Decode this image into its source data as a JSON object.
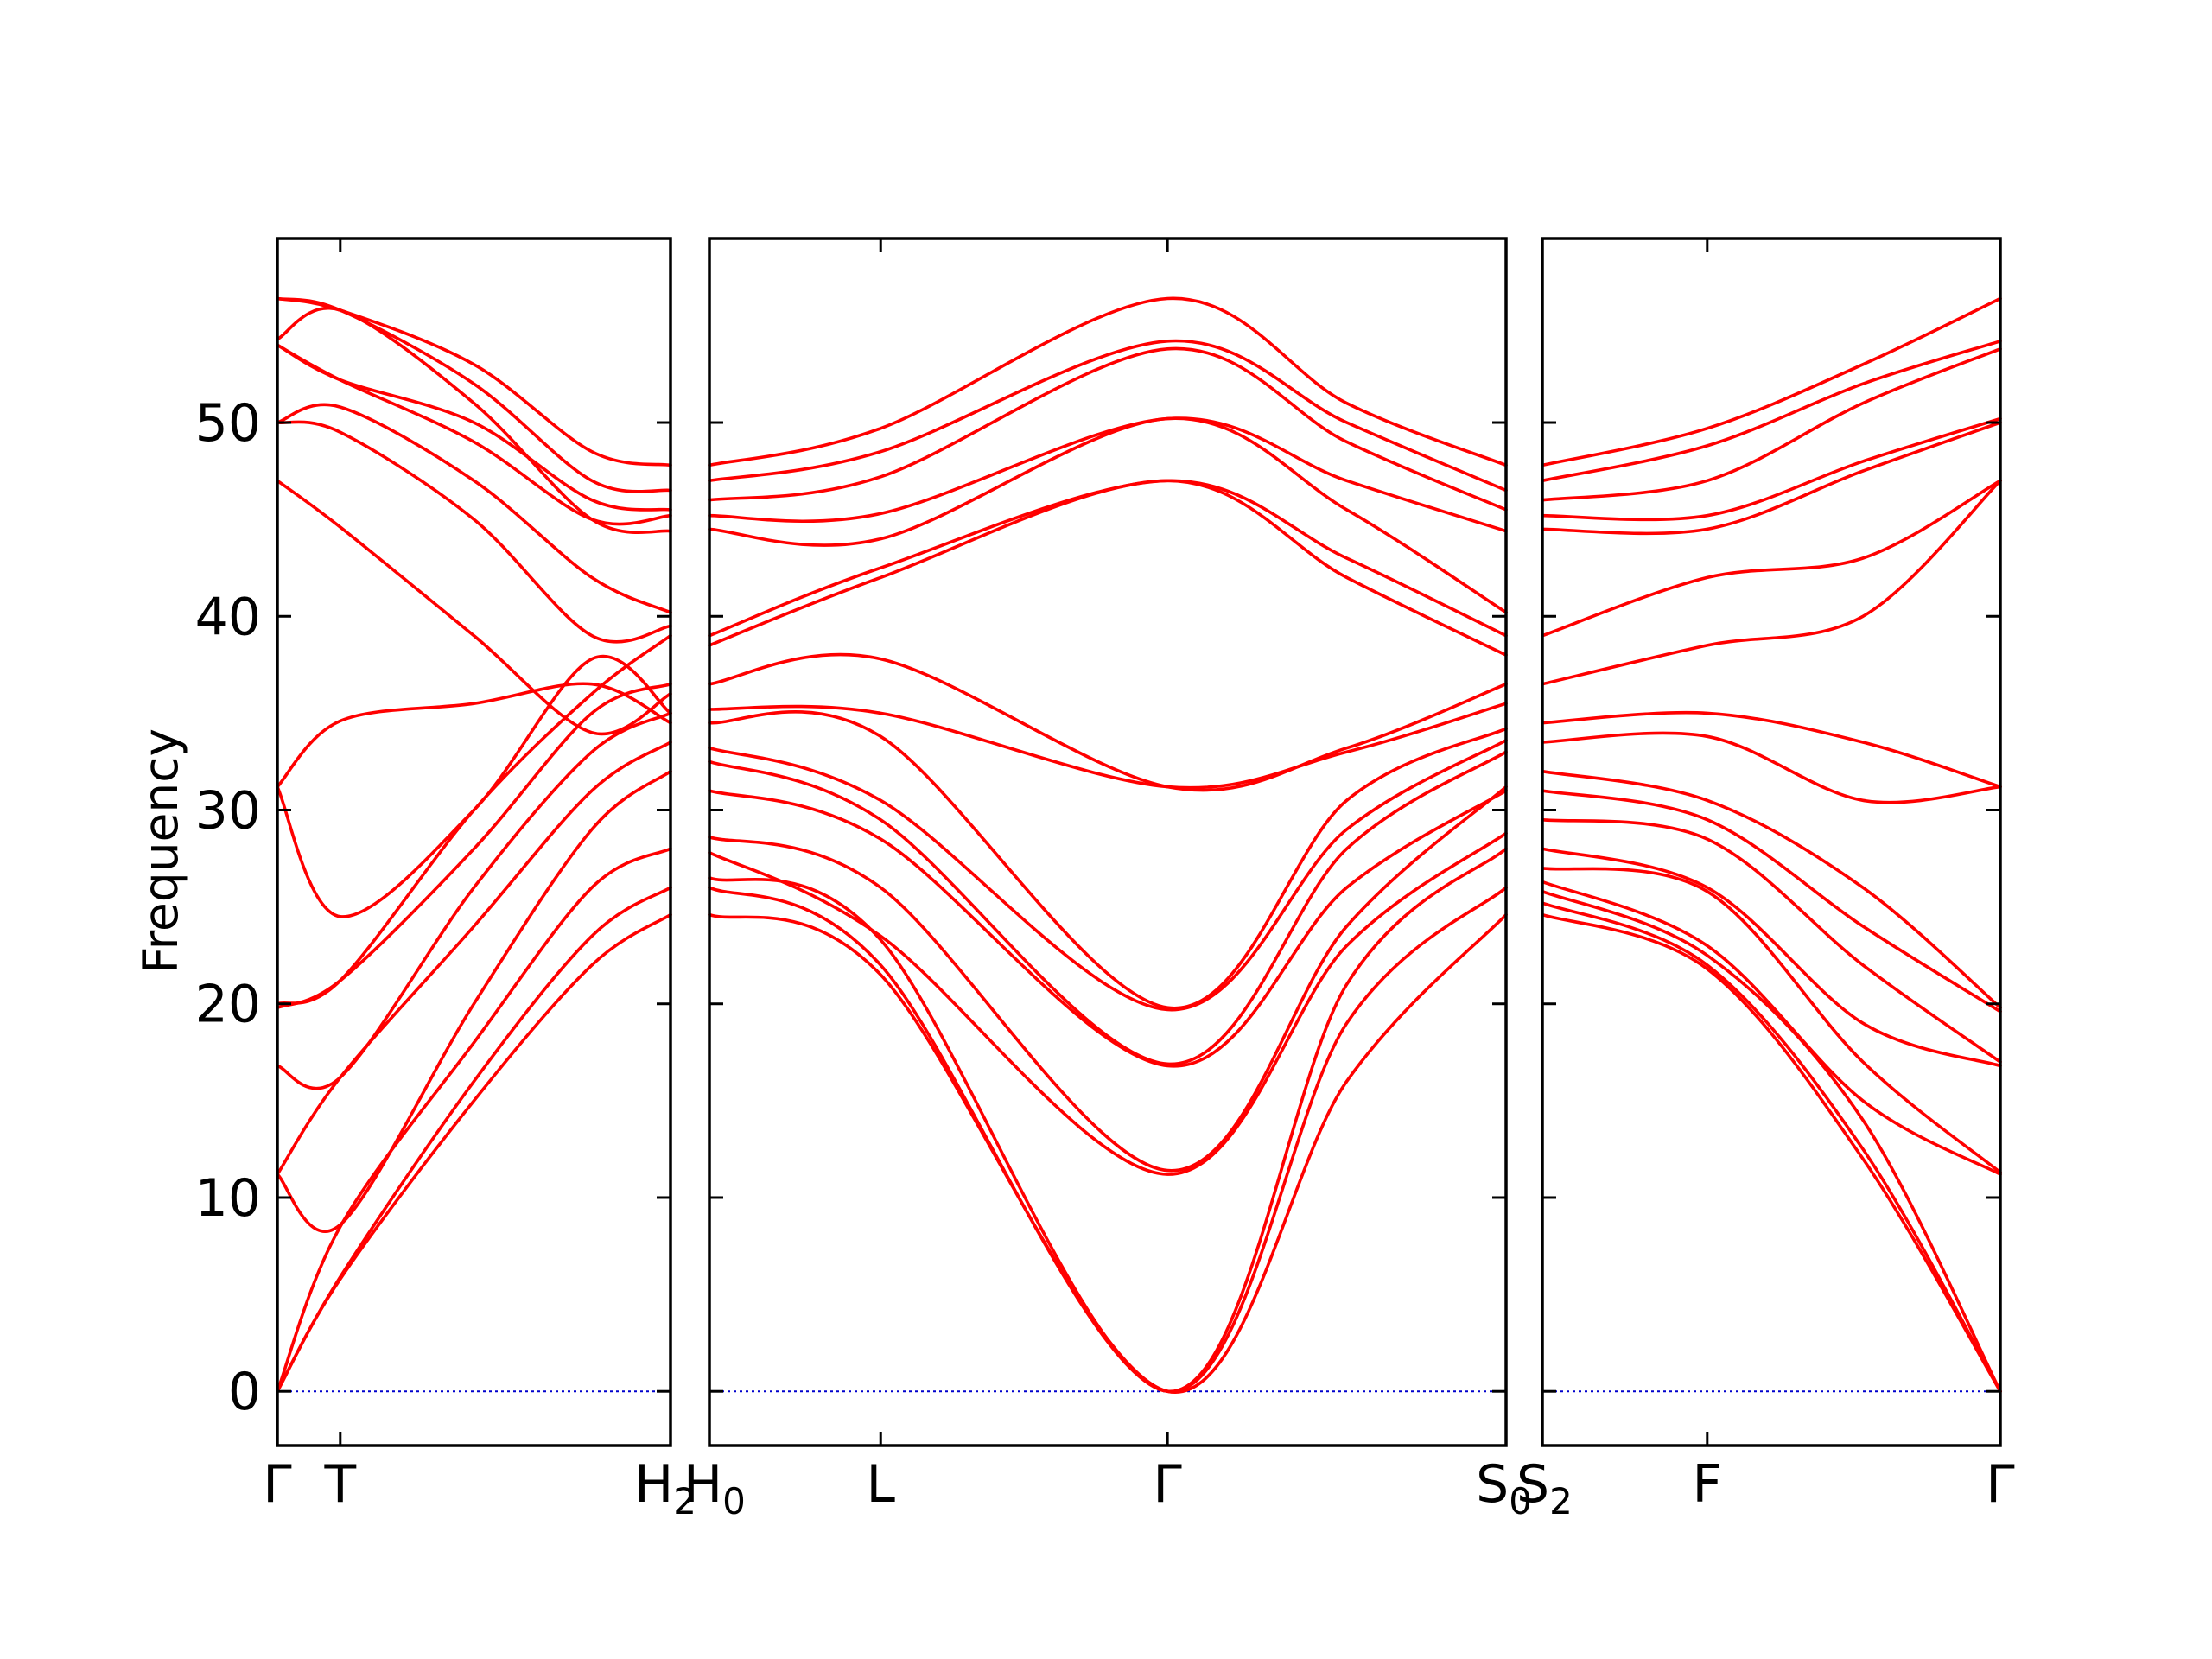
{
  "chart_data": {
    "type": "line",
    "title": "",
    "ylabel": "Frequency",
    "ylim": [
      -2.8,
      59.5
    ],
    "yticks": [
      "0",
      "10",
      "20",
      "30",
      "40",
      "50"
    ],
    "grid": false,
    "line_color": "#ff0000",
    "zero_line_color": "#0000cc",
    "panels": [
      {
        "id": "left",
        "x_labels": [
          {
            "text": "Γ",
            "sub": "",
            "at": 0
          },
          {
            "text": "T",
            "sub": "",
            "at": 0.16
          },
          {
            "text": "H",
            "sub": "2",
            "at": 1
          }
        ],
        "bands": [
          [
            [
              0,
              0
            ],
            [
              0.16,
              5.8
            ],
            [
              0.5,
              15
            ],
            [
              0.8,
              22
            ],
            [
              1,
              24.6
            ]
          ],
          [
            [
              0,
              0
            ],
            [
              0.16,
              5.9
            ],
            [
              0.5,
              16
            ],
            [
              0.8,
              23.5
            ],
            [
              1,
              26
            ]
          ],
          [
            [
              0,
              0
            ],
            [
              0.16,
              8.5
            ],
            [
              0.5,
              18
            ],
            [
              0.8,
              26
            ],
            [
              1,
              28
            ]
          ],
          [
            [
              0,
              11.2
            ],
            [
              0.16,
              8.6
            ],
            [
              0.5,
              20
            ],
            [
              0.8,
              29
            ],
            [
              1,
              32
            ]
          ],
          [
            [
              0,
              11.2
            ],
            [
              0.16,
              16.2
            ],
            [
              0.5,
              24
            ],
            [
              0.8,
              31
            ],
            [
              1,
              33.5
            ]
          ],
          [
            [
              0,
              16.8
            ],
            [
              0.16,
              16.2
            ],
            [
              0.5,
              26
            ],
            [
              0.8,
              33
            ],
            [
              1,
              35
            ]
          ],
          [
            [
              0,
              19.8
            ],
            [
              0.16,
              21.2
            ],
            [
              0.5,
              28
            ],
            [
              0.8,
              35
            ],
            [
              1,
              36.5
            ]
          ],
          [
            [
              0,
              20
            ],
            [
              0.16,
              21.2
            ],
            [
              0.5,
              30
            ],
            [
              0.8,
              36
            ],
            [
              1,
              39
            ]
          ],
          [
            [
              0,
              31.2
            ],
            [
              0.16,
              24.5
            ],
            [
              0.5,
              30
            ],
            [
              0.8,
              37.8
            ],
            [
              1,
              35
            ]
          ],
          [
            [
              0,
              31.2
            ],
            [
              0.16,
              34.6
            ],
            [
              0.5,
              35.5
            ],
            [
              0.8,
              36.5
            ],
            [
              1,
              34.5
            ]
          ],
          [
            [
              0,
              47
            ],
            [
              0.16,
              44.6
            ],
            [
              0.5,
              39
            ],
            [
              0.8,
              34
            ],
            [
              1,
              36
            ]
          ],
          [
            [
              0,
              50
            ],
            [
              0.16,
              49.5
            ],
            [
              0.5,
              45
            ],
            [
              0.8,
              39
            ],
            [
              1,
              39.5
            ]
          ],
          [
            [
              0,
              50
            ],
            [
              0.16,
              50.8
            ],
            [
              0.5,
              47
            ],
            [
              0.8,
              42
            ],
            [
              1,
              40.2
            ]
          ],
          [
            [
              0,
              54
            ],
            [
              0.16,
              52.2
            ],
            [
              0.5,
              49
            ],
            [
              0.8,
              45
            ],
            [
              1,
              45.2
            ]
          ],
          [
            [
              0,
              54
            ],
            [
              0.16,
              52.2
            ],
            [
              0.5,
              50
            ],
            [
              0.8,
              46
            ],
            [
              1,
              45.5
            ]
          ],
          [
            [
              0,
              54.3
            ],
            [
              0.16,
              55.8
            ],
            [
              0.5,
              51
            ],
            [
              0.8,
              45
            ],
            [
              1,
              44.4
            ]
          ],
          [
            [
              0,
              56.4
            ],
            [
              0.16,
              55.8
            ],
            [
              0.5,
              52
            ],
            [
              0.8,
              47
            ],
            [
              1,
              46.5
            ]
          ],
          [
            [
              0,
              56.4
            ],
            [
              0.16,
              55.8
            ],
            [
              0.5,
              53
            ],
            [
              0.8,
              48.5
            ],
            [
              1,
              47.8
            ]
          ]
        ]
      },
      {
        "id": "middle",
        "x_labels": [
          {
            "text": "H",
            "sub": "0",
            "at": 0
          },
          {
            "text": "L",
            "sub": "",
            "at": 0.215
          },
          {
            "text": "Γ",
            "sub": "",
            "at": 0.575
          },
          {
            "text": "S",
            "sub": "0",
            "at": 1
          }
        ],
        "bands": [
          [
            [
              0,
              24.6
            ],
            [
              0.215,
              21.5
            ],
            [
              0.575,
              0
            ],
            [
              0.8,
              16
            ],
            [
              1,
              24.6
            ]
          ],
          [
            [
              0,
              26
            ],
            [
              0.215,
              22
            ],
            [
              0.575,
              0
            ],
            [
              0.8,
              19
            ],
            [
              1,
              26
            ]
          ],
          [
            [
              0,
              26.5
            ],
            [
              0.215,
              23.3
            ],
            [
              0.575,
              0
            ],
            [
              0.8,
              21
            ],
            [
              1,
              28
            ]
          ],
          [
            [
              0,
              27.8
            ],
            [
              0.215,
              23.5
            ],
            [
              0.575,
              11.2
            ],
            [
              0.8,
              23
            ],
            [
              1,
              28.8
            ]
          ],
          [
            [
              0,
              28.6
            ],
            [
              0.215,
              26
            ],
            [
              0.575,
              11.4
            ],
            [
              0.8,
              24
            ],
            [
              1,
              31.2
            ]
          ],
          [
            [
              0,
              31
            ],
            [
              0.215,
              28.5
            ],
            [
              0.575,
              16.8
            ],
            [
              0.8,
              26
            ],
            [
              1,
              31
            ]
          ],
          [
            [
              0,
              32.5
            ],
            [
              0.215,
              29.5
            ],
            [
              0.575,
              16.9
            ],
            [
              0.8,
              28
            ],
            [
              1,
              33
            ]
          ],
          [
            [
              0,
              33.2
            ],
            [
              0.215,
              30.5
            ],
            [
              0.575,
              19.7
            ],
            [
              0.8,
              29
            ],
            [
              1,
              33.6
            ]
          ],
          [
            [
              0,
              34.5
            ],
            [
              0.215,
              33.8
            ],
            [
              0.575,
              19.8
            ],
            [
              0.8,
              30.5
            ],
            [
              1,
              34.2
            ]
          ],
          [
            [
              0,
              35.2
            ],
            [
              0.215,
              35
            ],
            [
              0.575,
              31.2
            ],
            [
              0.8,
              33
            ],
            [
              1,
              35.5
            ]
          ],
          [
            [
              0,
              36.5
            ],
            [
              0.215,
              37.8
            ],
            [
              0.575,
              31.2
            ],
            [
              0.8,
              33.2
            ],
            [
              1,
              36.5
            ]
          ],
          [
            [
              0,
              38.5
            ],
            [
              0.215,
              42
            ],
            [
              0.575,
              47
            ],
            [
              0.8,
              42
            ],
            [
              1,
              38
            ]
          ],
          [
            [
              0,
              39
            ],
            [
              0.215,
              42.5
            ],
            [
              0.575,
              47
            ],
            [
              0.8,
              43
            ],
            [
              1,
              39
            ]
          ],
          [
            [
              0,
              44.5
            ],
            [
              0.215,
              44
            ],
            [
              0.575,
              50.2
            ],
            [
              0.8,
              45.5
            ],
            [
              1,
              40.2
            ]
          ],
          [
            [
              0,
              45.2
            ],
            [
              0.215,
              45.3
            ],
            [
              0.575,
              50.2
            ],
            [
              0.8,
              47
            ],
            [
              1,
              44.4
            ]
          ],
          [
            [
              0,
              46
            ],
            [
              0.215,
              47.2
            ],
            [
              0.575,
              53.8
            ],
            [
              0.8,
              49
            ],
            [
              1,
              45.5
            ]
          ],
          [
            [
              0,
              47
            ],
            [
              0.215,
              48.5
            ],
            [
              0.575,
              54.2
            ],
            [
              0.8,
              50
            ],
            [
              1,
              46.5
            ]
          ],
          [
            [
              0,
              47.8
            ],
            [
              0.215,
              49.7
            ],
            [
              0.575,
              56.4
            ],
            [
              0.8,
              51
            ],
            [
              1,
              47.8
            ]
          ]
        ]
      },
      {
        "id": "right",
        "x_labels": [
          {
            "text": "S",
            "sub": "2",
            "at": 0
          },
          {
            "text": "F",
            "sub": "",
            "at": 0.36
          },
          {
            "text": "Γ",
            "sub": "",
            "at": 1
          }
        ],
        "bands": [
          [
            [
              0,
              24.6
            ],
            [
              0.36,
              21.8
            ],
            [
              0.7,
              12
            ],
            [
              1,
              0
            ]
          ],
          [
            [
              0,
              25.2
            ],
            [
              0.36,
              22
            ],
            [
              0.7,
              12.5
            ],
            [
              1,
              0
            ]
          ],
          [
            [
              0,
              25.8
            ],
            [
              0.36,
              22.5
            ],
            [
              0.7,
              14
            ],
            [
              1,
              0
            ]
          ],
          [
            [
              0,
              26.3
            ],
            [
              0.36,
              23
            ],
            [
              0.7,
              15
            ],
            [
              1,
              11.2
            ]
          ],
          [
            [
              0,
              27
            ],
            [
              0.36,
              25.8
            ],
            [
              0.7,
              17
            ],
            [
              1,
              11.3
            ]
          ],
          [
            [
              0,
              28
            ],
            [
              0.36,
              26
            ],
            [
              0.7,
              19
            ],
            [
              1,
              16.8
            ]
          ],
          [
            [
              0,
              29.5
            ],
            [
              0.36,
              28.5
            ],
            [
              0.7,
              22
            ],
            [
              1,
              17
            ]
          ],
          [
            [
              0,
              31
            ],
            [
              0.36,
              29.5
            ],
            [
              0.7,
              24
            ],
            [
              1,
              19.6
            ]
          ],
          [
            [
              0,
              32
            ],
            [
              0.36,
              30.5
            ],
            [
              0.7,
              26
            ],
            [
              1,
              19.8
            ]
          ],
          [
            [
              0,
              33.5
            ],
            [
              0.36,
              33.8
            ],
            [
              0.7,
              30.5
            ],
            [
              1,
              31.2
            ]
          ],
          [
            [
              0,
              34.5
            ],
            [
              0.36,
              35
            ],
            [
              0.7,
              33.5
            ],
            [
              1,
              31.2
            ]
          ],
          [
            [
              0,
              36.5
            ],
            [
              0.36,
              38.5
            ],
            [
              0.7,
              40
            ],
            [
              1,
              47
            ]
          ],
          [
            [
              0,
              39
            ],
            [
              0.36,
              42
            ],
            [
              0.7,
              43
            ],
            [
              1,
              47
            ]
          ],
          [
            [
              0,
              44.5
            ],
            [
              0.36,
              44.5
            ],
            [
              0.7,
              47.5
            ],
            [
              1,
              50
            ]
          ],
          [
            [
              0,
              45.2
            ],
            [
              0.36,
              45.2
            ],
            [
              0.7,
              48
            ],
            [
              1,
              50.2
            ]
          ],
          [
            [
              0,
              46
            ],
            [
              0.36,
              47
            ],
            [
              0.7,
              51
            ],
            [
              1,
              53.8
            ]
          ],
          [
            [
              0,
              47
            ],
            [
              0.36,
              48.8
            ],
            [
              0.7,
              52
            ],
            [
              1,
              54.2
            ]
          ],
          [
            [
              0,
              47.8
            ],
            [
              0.36,
              49.7
            ],
            [
              0.7,
              53
            ],
            [
              1,
              56.4
            ]
          ]
        ]
      }
    ]
  }
}
